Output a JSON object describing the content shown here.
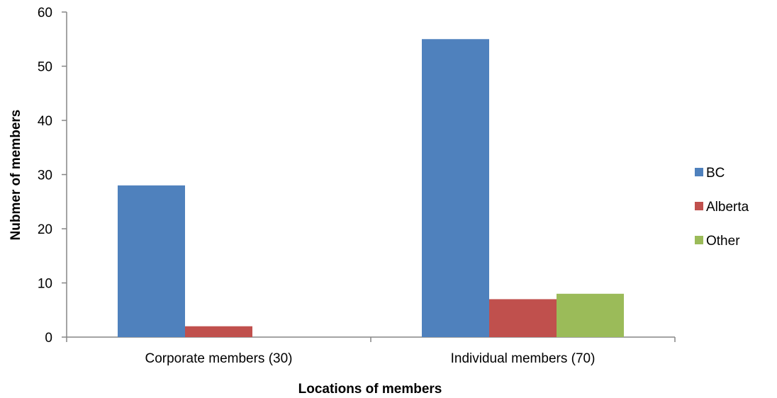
{
  "chart_data": {
    "type": "bar",
    "categories": [
      "Corporate members (30)",
      "Individual members (70)"
    ],
    "series": [
      {
        "name": "BC",
        "values": [
          28,
          55
        ],
        "color": "#4F81BD"
      },
      {
        "name": "Alberta",
        "values": [
          2,
          7
        ],
        "color": "#C0504D"
      },
      {
        "name": "Other",
        "values": [
          0,
          8
        ],
        "color": "#9BBB59"
      }
    ],
    "xlabel": "Locations of members",
    "ylabel": "Nubmer of members",
    "ylim": [
      0,
      60
    ],
    "yticks": [
      0,
      10,
      20,
      30,
      40,
      50,
      60
    ],
    "grid": false,
    "legend_position": "right"
  }
}
